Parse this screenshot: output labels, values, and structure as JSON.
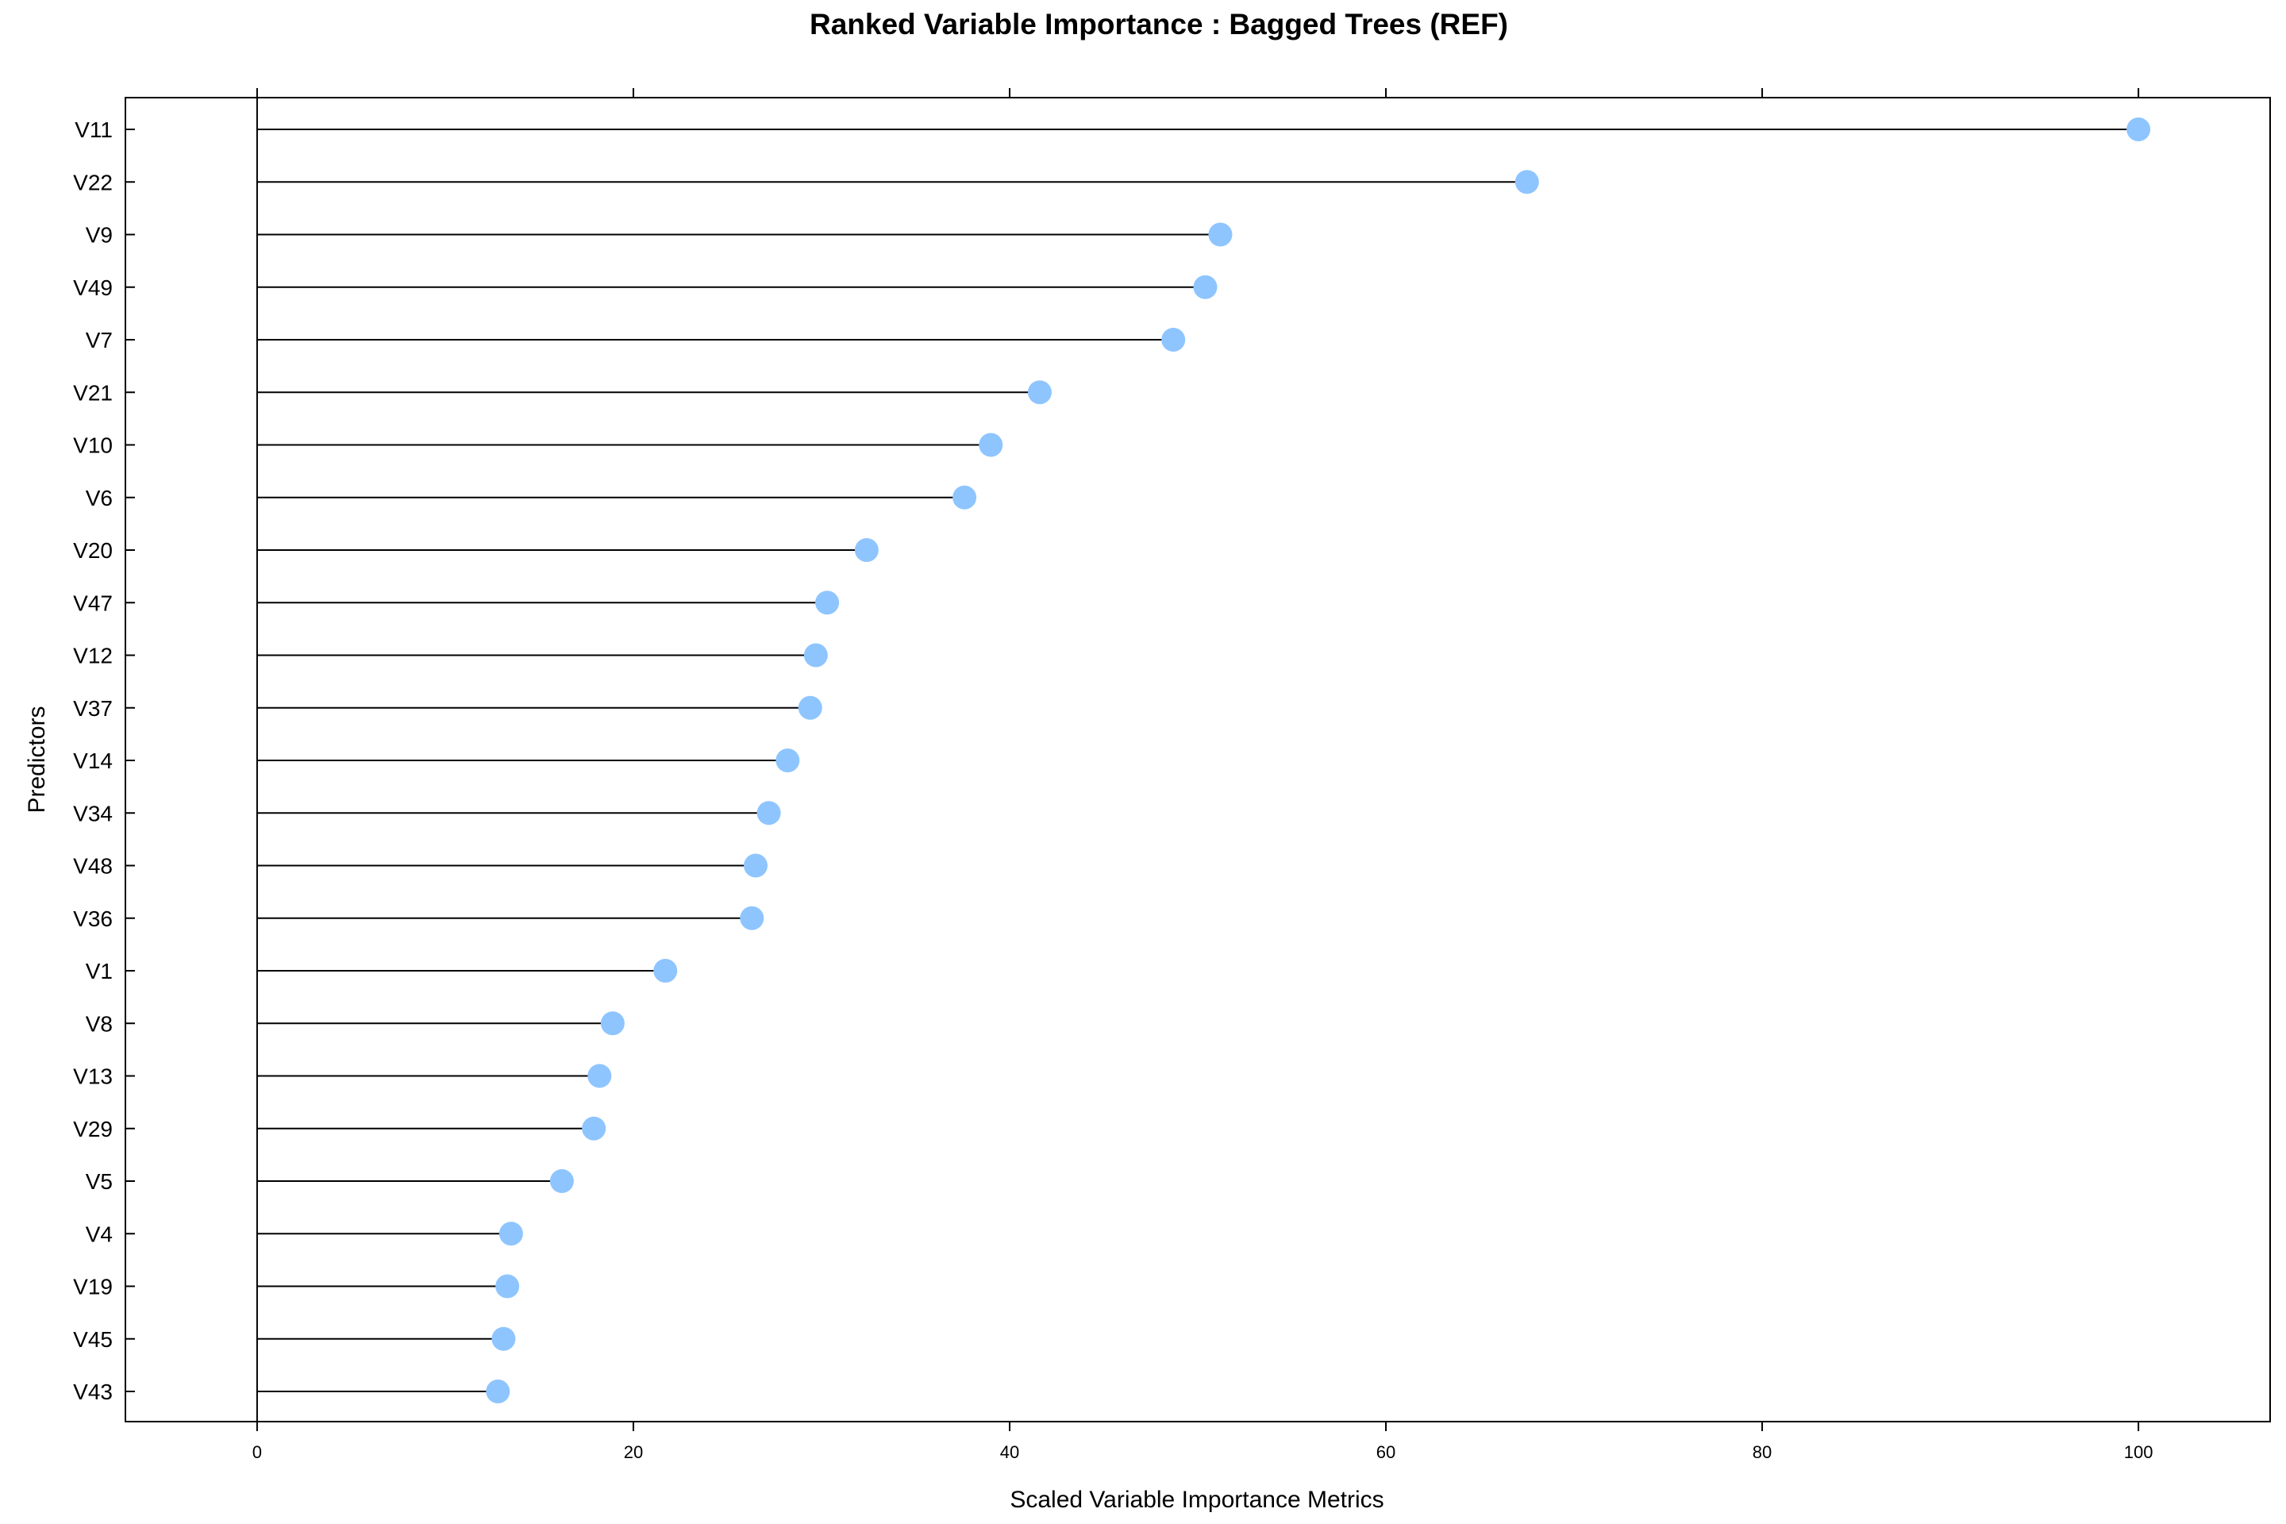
{
  "chart_data": {
    "type": "dot",
    "title": "Ranked Variable Importance : Bagged Trees (REF)",
    "xlabel": "Scaled Variable Importance Metrics",
    "ylabel": "Predictors",
    "xlim": [
      -7,
      107
    ],
    "xticks": [
      0,
      20,
      40,
      60,
      80,
      100
    ],
    "categories": [
      "V11",
      "V22",
      "V9",
      "V49",
      "V7",
      "V21",
      "V10",
      "V6",
      "V20",
      "V47",
      "V12",
      "V37",
      "V14",
      "V34",
      "V48",
      "V36",
      "V1",
      "V8",
      "V13",
      "V29",
      "V5",
      "V4",
      "V19",
      "V45",
      "V43"
    ],
    "values": [
      100,
      67.5,
      51.2,
      50.4,
      48.7,
      41.6,
      39.0,
      37.6,
      32.4,
      30.3,
      29.7,
      29.4,
      28.2,
      27.2,
      26.5,
      26.3,
      21.7,
      18.9,
      18.2,
      17.9,
      16.2,
      13.5,
      13.3,
      13.1,
      12.8
    ],
    "point_color": "#8EC5FF",
    "stem_color": "#000000",
    "grid": false,
    "legend": "none"
  }
}
